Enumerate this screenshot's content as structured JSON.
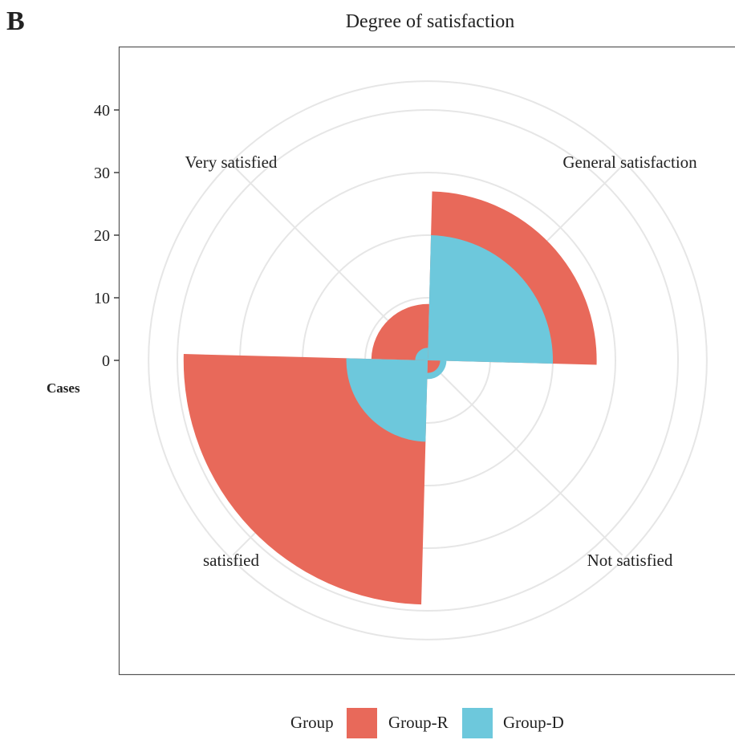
{
  "panel_letter": "B",
  "chart_data": {
    "type": "polar-bar",
    "title": "Degree of satisfaction",
    "ylabel": "Cases",
    "y_ticks": [
      0,
      10,
      20,
      30,
      40
    ],
    "ylim": [
      0,
      44
    ],
    "grid": true,
    "legend_position": "bottom",
    "legend_title": "Group",
    "categories": [
      "General satisfaction",
      "Not satisfied",
      "satisfied",
      "Very satisfied"
    ],
    "series": [
      {
        "name": "Group-R",
        "color": "#E8695A",
        "values": [
          27,
          2,
          39,
          9
        ]
      },
      {
        "name": "Group-D",
        "color": "#6DC8DC",
        "values": [
          20,
          3,
          13,
          2
        ]
      }
    ]
  }
}
